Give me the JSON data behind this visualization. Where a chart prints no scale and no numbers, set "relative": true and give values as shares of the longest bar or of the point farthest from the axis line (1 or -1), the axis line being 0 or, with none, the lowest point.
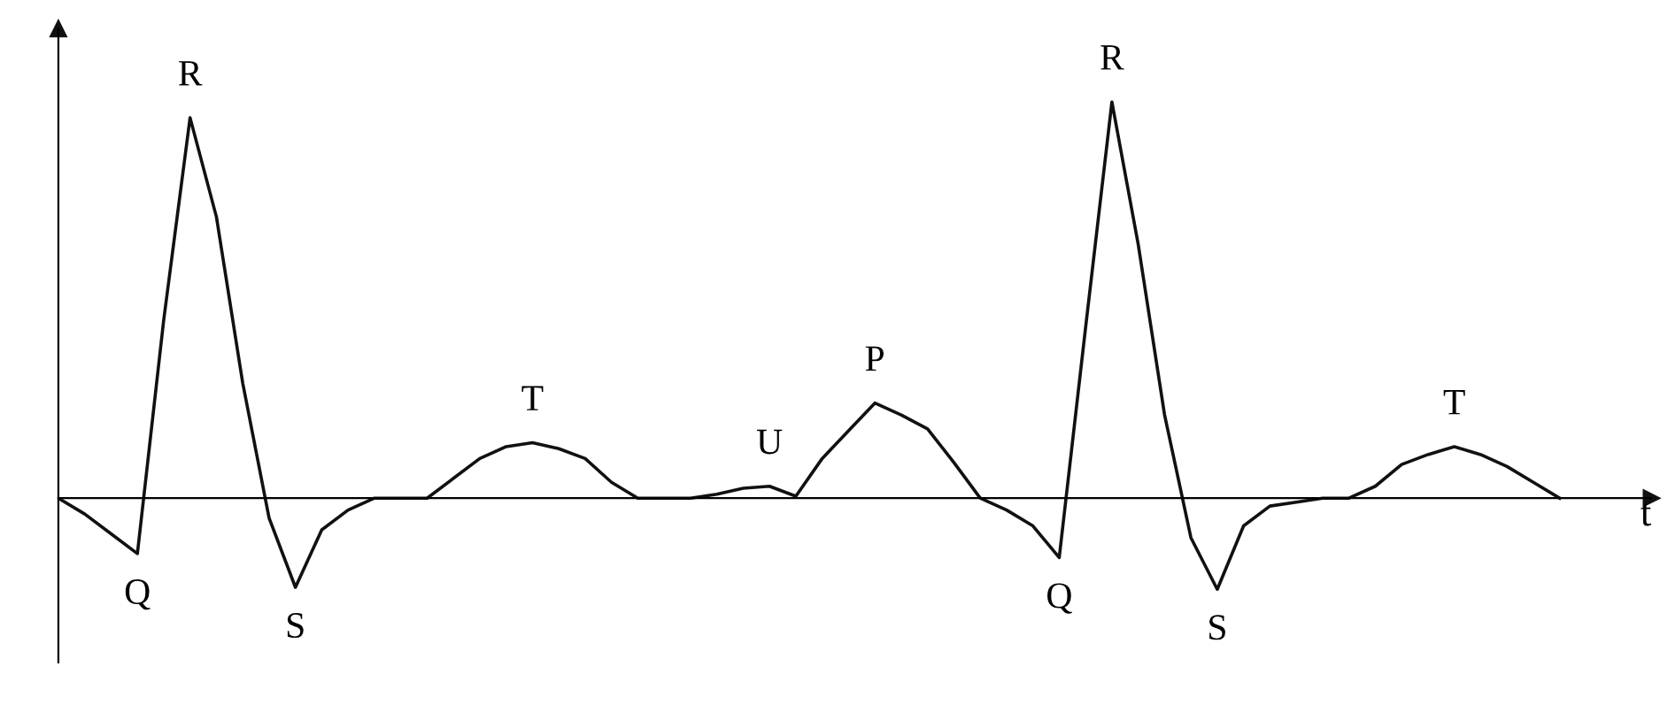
{
  "chart_data": {
    "type": "line",
    "relative": true,
    "xlabel": "t",
    "color": "#111111",
    "categories": [
      null,
      null,
      null,
      null,
      null,
      null,
      null,
      null,
      null,
      null,
      null,
      null,
      null,
      null,
      null,
      null,
      null,
      null,
      null,
      null,
      null,
      null,
      null,
      null,
      null,
      null,
      null,
      null,
      null,
      null,
      null,
      null,
      null,
      null,
      null,
      null,
      null,
      null,
      null,
      null,
      null,
      null,
      null,
      null,
      null,
      null,
      null,
      null,
      null,
      null,
      null,
      null,
      null,
      null,
      null,
      null,
      null,
      null
    ],
    "values": [
      0,
      -0.04,
      -0.09,
      -0.14,
      0.45,
      0.96,
      0.71,
      0.29,
      -0.05,
      -0.225,
      -0.08,
      -0.03,
      0,
      0,
      0,
      0.05,
      0.1,
      0.13,
      0.14,
      0.125,
      0.1,
      0.04,
      0,
      0,
      0,
      0.01,
      0.025,
      0.03,
      0.005,
      0.1,
      0.17,
      0.24,
      0.21,
      0.175,
      0.09,
      0,
      -0.03,
      -0.07,
      -0.15,
      0.43,
      1.0,
      0.64,
      0.21,
      -0.1,
      -0.23,
      -0.07,
      -0.02,
      -0.01,
      0,
      0,
      0.03,
      0.085,
      0.11,
      0.13,
      0.11,
      0.08,
      0.04,
      0
    ],
    "annotations": [
      "Q",
      "R",
      "S",
      "T",
      "U",
      "P",
      "Q",
      "R",
      "S",
      "T"
    ]
  }
}
